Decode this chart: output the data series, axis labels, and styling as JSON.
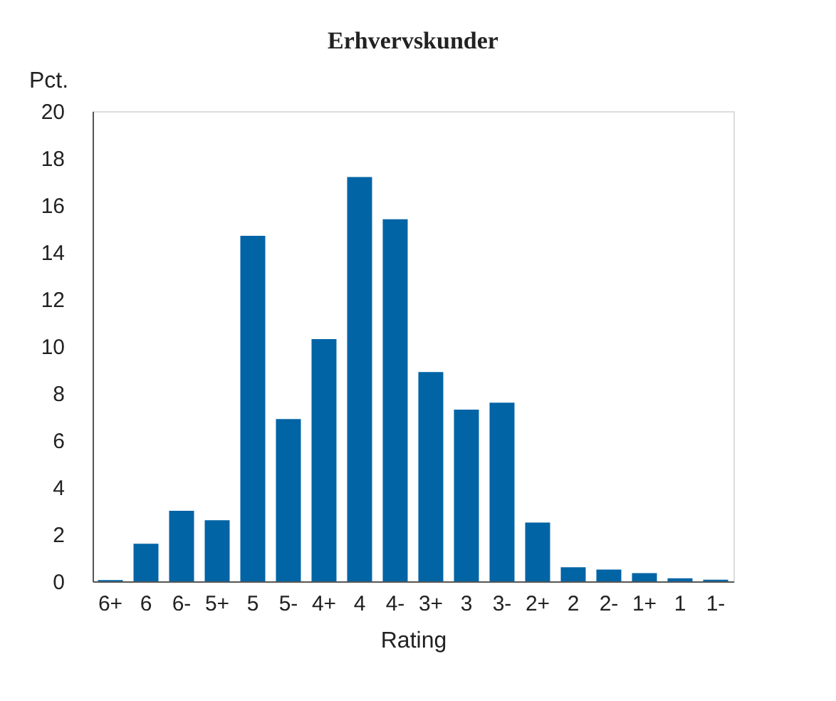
{
  "chart_data": {
    "type": "bar",
    "title": "Erhvervskunder",
    "ylabel": "Pct.",
    "xlabel": "Rating",
    "categories": [
      "6+",
      "6",
      "6-",
      "5+",
      "5",
      "5-",
      "4+",
      "4",
      "4-",
      "3+",
      "3",
      "3-",
      "2+",
      "2",
      "2-",
      "1+",
      "1",
      "1-"
    ],
    "values": [
      0.05,
      1.6,
      3.0,
      2.6,
      14.7,
      6.9,
      10.3,
      17.2,
      15.4,
      8.9,
      7.3,
      7.6,
      2.5,
      0.6,
      0.5,
      0.35,
      0.13,
      0.07
    ],
    "color": "#0064a5",
    "ylim": [
      0,
      20
    ],
    "yticks": [
      0,
      2,
      4,
      6,
      8,
      10,
      12,
      14,
      16,
      18,
      20
    ],
    "grid": false
  }
}
